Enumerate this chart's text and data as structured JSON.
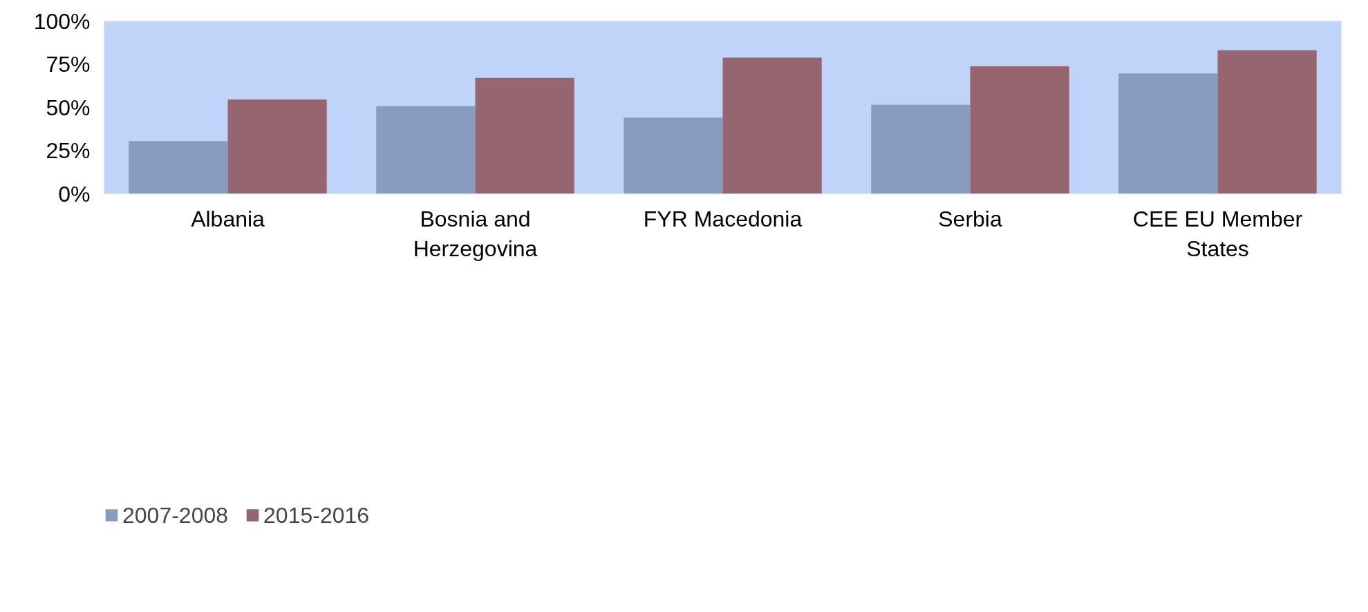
{
  "chart_data": {
    "type": "bar",
    "categories": [
      "Albania",
      "Bosnia and Herzegovina",
      "FYR Macedonia",
      "Serbia",
      "CEE EU Member States"
    ],
    "series": [
      {
        "name": "2007-2008",
        "color": "#879cbe",
        "values": [
          30.5,
          50.7,
          44.1,
          51.5,
          69.7
        ]
      },
      {
        "name": "2015-2016",
        "color": "#956570",
        "values": [
          54.6,
          67.1,
          78.8,
          73.8,
          83.1
        ]
      }
    ],
    "ylim": [
      0,
      100
    ],
    "yticks": [
      {
        "value": 0,
        "label": "0%"
      },
      {
        "value": 25,
        "label": "25%"
      },
      {
        "value": 50,
        "label": "50%"
      },
      {
        "value": 75,
        "label": "75%"
      },
      {
        "value": 100,
        "label": "100%"
      }
    ],
    "grid": false,
    "legend": "bottom left"
  }
}
